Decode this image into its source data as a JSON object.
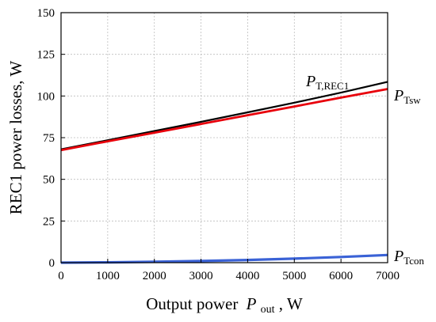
{
  "chart_data": {
    "type": "line",
    "title": "",
    "xlabel": "Output power",
    "xlabel_symbol": "P",
    "xlabel_subscript": "out",
    "xlabel_unit": ", W",
    "ylabel": "REC1 power losses, W",
    "xlim": [
      0,
      7000
    ],
    "ylim": [
      0,
      150
    ],
    "xticks": [
      0,
      1000,
      2000,
      3000,
      4000,
      5000,
      6000,
      7000
    ],
    "yticks": [
      0,
      25,
      50,
      75,
      100,
      125,
      150
    ],
    "grid": true,
    "series": [
      {
        "symbol": "P",
        "subscript": "T,REC1",
        "color": "#000000",
        "x": [
          0,
          1000,
          2000,
          3000,
          4000,
          5000,
          6000,
          7000
        ],
        "values": [
          68,
          73.5,
          79,
          84.5,
          90.2,
          96,
          102,
          108.5
        ]
      },
      {
        "symbol": "P",
        "subscript": "Tsw",
        "color": "#e8000b",
        "x": [
          0,
          1000,
          2000,
          3000,
          4000,
          5000,
          6000,
          7000
        ],
        "values": [
          67.5,
          72.8,
          78,
          83.2,
          88.5,
          93.7,
          99,
          104.2
        ]
      },
      {
        "symbol": "P",
        "subscript": "Tcon",
        "color": "#3a62d6",
        "x": [
          0,
          1000,
          2000,
          3000,
          4000,
          5000,
          6000,
          7000
        ],
        "values": [
          0,
          0.2,
          0.5,
          1.0,
          1.6,
          2.4,
          3.4,
          4.6
        ]
      }
    ]
  }
}
